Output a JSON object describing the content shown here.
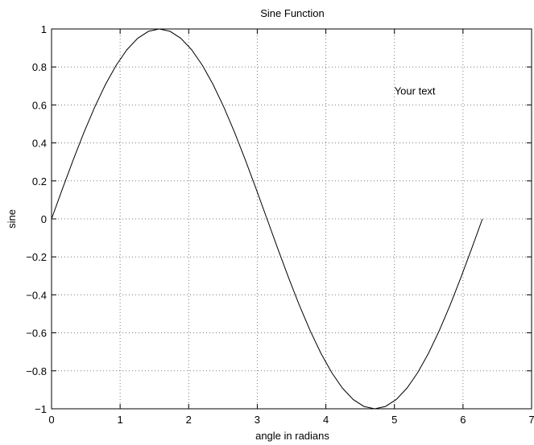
{
  "chart_data": {
    "type": "line",
    "title": "Sine Function",
    "xlabel": "angle in radians",
    "ylabel": "sine",
    "xlim": [
      0,
      7
    ],
    "ylim": [
      -1,
      1
    ],
    "xticks": [
      0,
      1,
      2,
      3,
      4,
      5,
      6,
      7
    ],
    "xtick_labels": [
      "0",
      "1",
      "2",
      "3",
      "4",
      "5",
      "6",
      "7"
    ],
    "yticks": [
      -1,
      -0.8,
      -0.6,
      -0.4,
      -0.2,
      0,
      0.2,
      0.4,
      0.6,
      0.8,
      1
    ],
    "ytick_labels": [
      "−1",
      "−0.8",
      "−0.6",
      "−0.4",
      "−0.2",
      "0",
      "0.2",
      "0.4",
      "0.6",
      "0.8",
      "1"
    ],
    "grid": true,
    "annotations": [
      {
        "text": "Your text",
        "x": 5.0,
        "y": 0.675
      }
    ],
    "series": [
      {
        "color": "#000000",
        "x": [
          0,
          0.1571,
          0.3142,
          0.4712,
          0.6283,
          0.7854,
          0.9425,
          1.0996,
          1.2566,
          1.4137,
          1.5708,
          1.7279,
          1.885,
          2.042,
          2.1991,
          2.3562,
          2.5133,
          2.6704,
          2.8274,
          2.9845,
          3.1416,
          3.2987,
          3.4558,
          3.6128,
          3.7699,
          3.927,
          4.0841,
          4.2412,
          4.3982,
          4.5553,
          4.7124,
          4.8695,
          5.0265,
          5.1836,
          5.3407,
          5.4978,
          5.6549,
          5.812,
          5.969,
          6.1261,
          6.2832
        ],
        "y": [
          0,
          0.1564,
          0.309,
          0.454,
          0.5878,
          0.7071,
          0.809,
          0.891,
          0.9511,
          0.9877,
          1,
          0.9877,
          0.9511,
          0.891,
          0.809,
          0.7071,
          0.5878,
          0.454,
          0.309,
          0.1564,
          0,
          -0.1564,
          -0.309,
          -0.454,
          -0.5878,
          -0.7071,
          -0.809,
          -0.891,
          -0.9511,
          -0.9877,
          -1,
          -0.9877,
          -0.9511,
          -0.891,
          -0.809,
          -0.7071,
          -0.5878,
          -0.454,
          -0.309,
          -0.1564,
          0
        ]
      }
    ]
  }
}
